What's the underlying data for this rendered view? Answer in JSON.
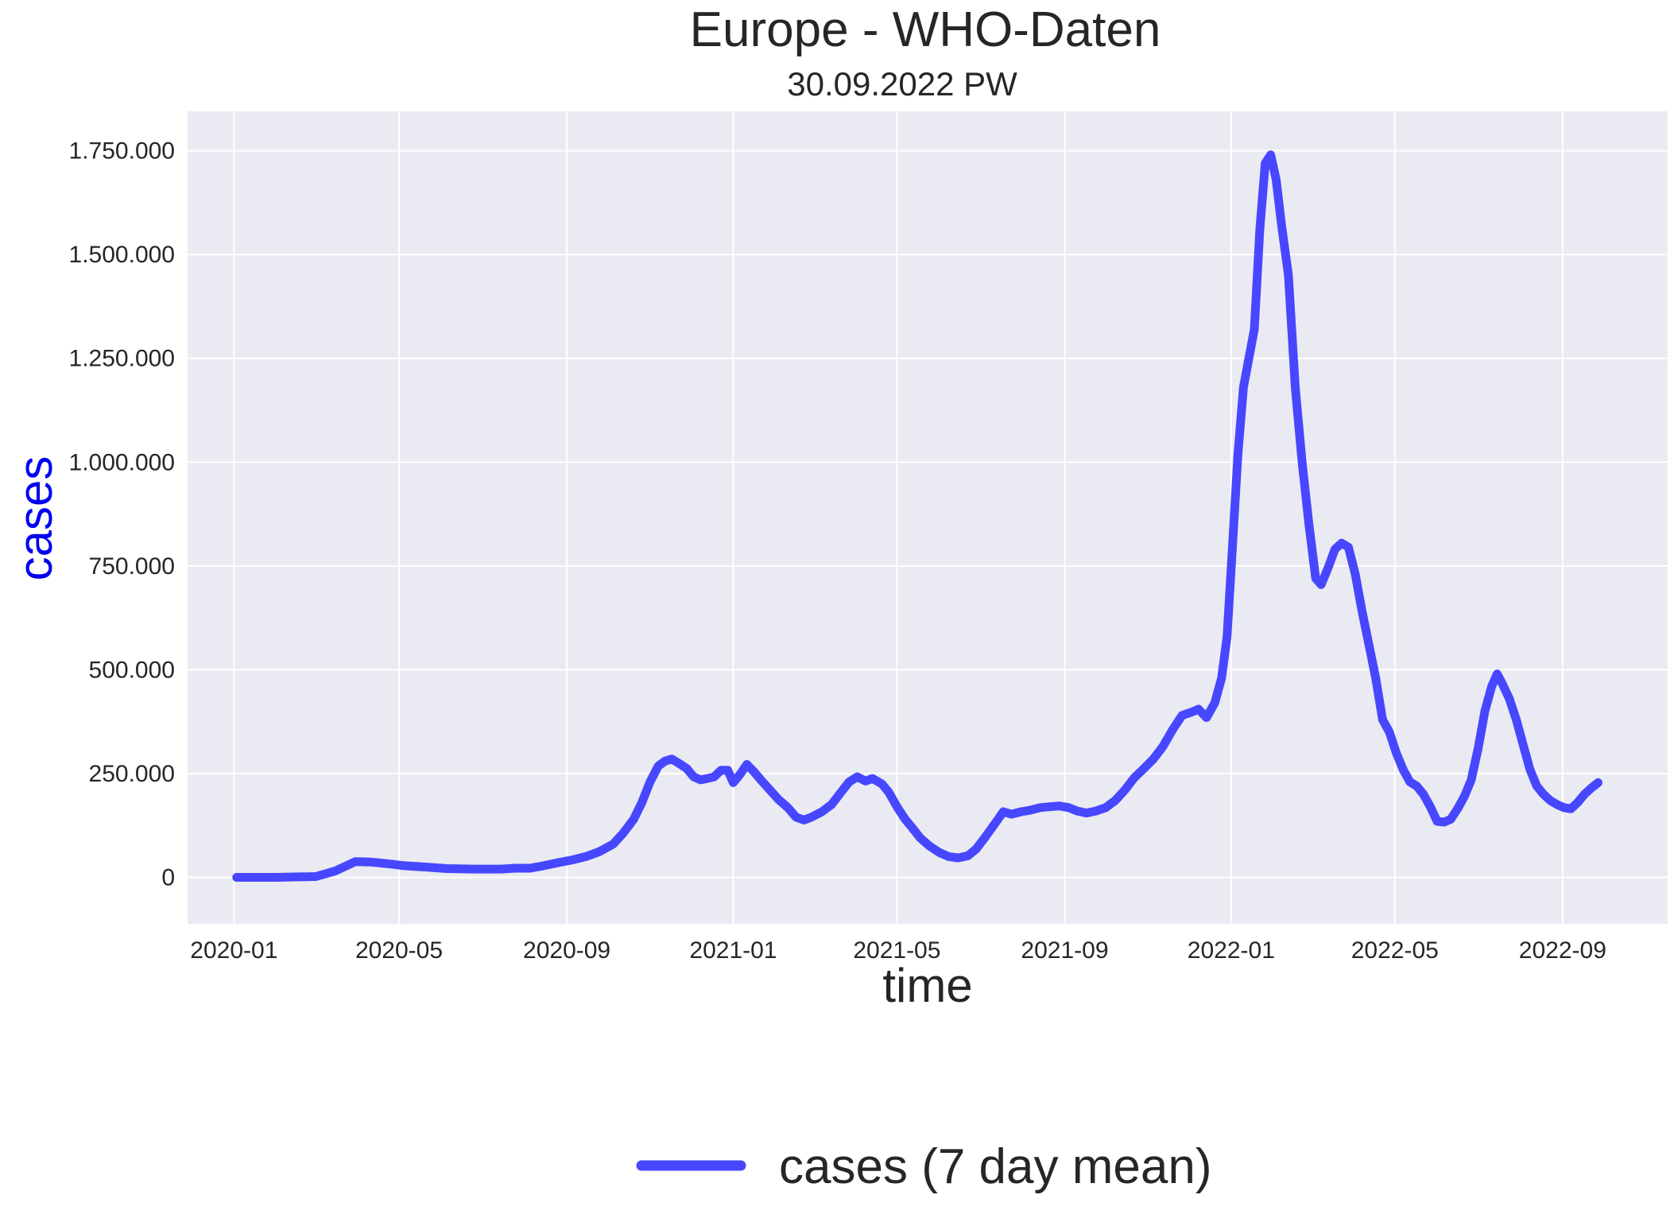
{
  "chart_data": {
    "type": "line",
    "title": "Europe - WHO-Daten",
    "subtitle": "30.09.2022 PW",
    "xlabel": "time",
    "ylabel": "cases",
    "ylim": [
      -112000,
      1845000
    ],
    "xlim": [
      "2019-11-28",
      "2022-11-17"
    ],
    "x_ticks": [
      {
        "date": "2020-01-01",
        "label": "2020-01"
      },
      {
        "date": "2020-05-01",
        "label": "2020-05"
      },
      {
        "date": "2020-09-01",
        "label": "2020-09"
      },
      {
        "date": "2021-01-01",
        "label": "2021-01"
      },
      {
        "date": "2021-05-01",
        "label": "2021-05"
      },
      {
        "date": "2021-09-01",
        "label": "2021-09"
      },
      {
        "date": "2022-01-01",
        "label": "2022-01"
      },
      {
        "date": "2022-05-01",
        "label": "2022-05"
      },
      {
        "date": "2022-09-01",
        "label": "2022-09"
      }
    ],
    "y_ticks": [
      {
        "value": 0,
        "label": "0"
      },
      {
        "value": 250000,
        "label": "250.000"
      },
      {
        "value": 500000,
        "label": "500.000"
      },
      {
        "value": 750000,
        "label": "750.000"
      },
      {
        "value": 1000000,
        "label": "1.000.000"
      },
      {
        "value": 1250000,
        "label": "1.250.000"
      },
      {
        "value": 1500000,
        "label": "1.500.000"
      },
      {
        "value": 1750000,
        "label": "1.750.000"
      }
    ],
    "grid": true,
    "legend_position": "bottom-center",
    "series": [
      {
        "name": "cases (7 day mean)",
        "color": "#4747ff",
        "points": [
          [
            "2020-01-03",
            0
          ],
          [
            "2020-02-01",
            0
          ],
          [
            "2020-03-01",
            2000
          ],
          [
            "2020-03-15",
            15000
          ],
          [
            "2020-03-30",
            38000
          ],
          [
            "2020-04-10",
            37000
          ],
          [
            "2020-04-25",
            32000
          ],
          [
            "2020-05-05",
            28000
          ],
          [
            "2020-05-20",
            25000
          ],
          [
            "2020-06-05",
            21000
          ],
          [
            "2020-06-25",
            20000
          ],
          [
            "2020-07-15",
            20000
          ],
          [
            "2020-07-25",
            22000
          ],
          [
            "2020-08-05",
            22000
          ],
          [
            "2020-08-15",
            28000
          ],
          [
            "2020-08-25",
            35000
          ],
          [
            "2020-09-05",
            42000
          ],
          [
            "2020-09-15",
            50000
          ],
          [
            "2020-09-25",
            62000
          ],
          [
            "2020-10-05",
            80000
          ],
          [
            "2020-10-12",
            105000
          ],
          [
            "2020-10-20",
            140000
          ],
          [
            "2020-10-26",
            180000
          ],
          [
            "2020-11-01",
            230000
          ],
          [
            "2020-11-07",
            268000
          ],
          [
            "2020-11-12",
            280000
          ],
          [
            "2020-11-17",
            285000
          ],
          [
            "2020-11-22",
            275000
          ],
          [
            "2020-11-28",
            262000
          ],
          [
            "2020-12-03",
            242000
          ],
          [
            "2020-12-08",
            235000
          ],
          [
            "2020-12-13",
            238000
          ],
          [
            "2020-12-18",
            242000
          ],
          [
            "2020-12-23",
            258000
          ],
          [
            "2020-12-28",
            258000
          ],
          [
            "2021-01-01",
            228000
          ],
          [
            "2021-01-06",
            248000
          ],
          [
            "2021-01-11",
            272000
          ],
          [
            "2021-01-16",
            255000
          ],
          [
            "2021-01-22",
            232000
          ],
          [
            "2021-01-28",
            210000
          ],
          [
            "2021-02-03",
            188000
          ],
          [
            "2021-02-10",
            168000
          ],
          [
            "2021-02-16",
            145000
          ],
          [
            "2021-02-22",
            138000
          ],
          [
            "2021-02-28",
            146000
          ],
          [
            "2021-03-07",
            158000
          ],
          [
            "2021-03-14",
            175000
          ],
          [
            "2021-03-21",
            205000
          ],
          [
            "2021-03-27",
            230000
          ],
          [
            "2021-04-02",
            242000
          ],
          [
            "2021-04-08",
            232000
          ],
          [
            "2021-04-13",
            238000
          ],
          [
            "2021-04-20",
            225000
          ],
          [
            "2021-04-25",
            205000
          ],
          [
            "2021-05-01",
            170000
          ],
          [
            "2021-05-07",
            140000
          ],
          [
            "2021-05-12",
            120000
          ],
          [
            "2021-05-18",
            95000
          ],
          [
            "2021-05-25",
            75000
          ],
          [
            "2021-06-01",
            60000
          ],
          [
            "2021-06-08",
            50000
          ],
          [
            "2021-06-15",
            47000
          ],
          [
            "2021-06-22",
            52000
          ],
          [
            "2021-06-28",
            68000
          ],
          [
            "2021-07-05",
            98000
          ],
          [
            "2021-07-12",
            130000
          ],
          [
            "2021-07-18",
            158000
          ],
          [
            "2021-07-24",
            152000
          ],
          [
            "2021-07-31",
            158000
          ],
          [
            "2021-08-07",
            162000
          ],
          [
            "2021-08-14",
            168000
          ],
          [
            "2021-08-21",
            170000
          ],
          [
            "2021-08-28",
            172000
          ],
          [
            "2021-09-04",
            168000
          ],
          [
            "2021-09-10",
            160000
          ],
          [
            "2021-09-17",
            155000
          ],
          [
            "2021-09-24",
            160000
          ],
          [
            "2021-10-01",
            168000
          ],
          [
            "2021-10-08",
            185000
          ],
          [
            "2021-10-15",
            210000
          ],
          [
            "2021-10-22",
            240000
          ],
          [
            "2021-10-29",
            262000
          ],
          [
            "2021-11-05",
            285000
          ],
          [
            "2021-11-12",
            315000
          ],
          [
            "2021-11-19",
            355000
          ],
          [
            "2021-11-26",
            390000
          ],
          [
            "2021-12-03",
            398000
          ],
          [
            "2021-12-08",
            405000
          ],
          [
            "2021-12-14",
            385000
          ],
          [
            "2021-12-20",
            420000
          ],
          [
            "2021-12-25",
            480000
          ],
          [
            "2021-12-29",
            580000
          ],
          [
            "2022-01-02",
            800000
          ],
          [
            "2022-01-06",
            1020000
          ],
          [
            "2022-01-10",
            1180000
          ],
          [
            "2022-01-14",
            1250000
          ],
          [
            "2022-01-18",
            1320000
          ],
          [
            "2022-01-22",
            1560000
          ],
          [
            "2022-01-26",
            1720000
          ],
          [
            "2022-01-30",
            1740000
          ],
          [
            "2022-02-03",
            1680000
          ],
          [
            "2022-02-07",
            1570000
          ],
          [
            "2022-02-12",
            1450000
          ],
          [
            "2022-02-17",
            1180000
          ],
          [
            "2022-02-22",
            1000000
          ],
          [
            "2022-02-27",
            850000
          ],
          [
            "2022-03-04",
            720000
          ],
          [
            "2022-03-08",
            705000
          ],
          [
            "2022-03-13",
            745000
          ],
          [
            "2022-03-18",
            790000
          ],
          [
            "2022-03-23",
            805000
          ],
          [
            "2022-03-28",
            795000
          ],
          [
            "2022-04-02",
            730000
          ],
          [
            "2022-04-07",
            640000
          ],
          [
            "2022-04-12",
            560000
          ],
          [
            "2022-04-17",
            480000
          ],
          [
            "2022-04-22",
            380000
          ],
          [
            "2022-04-27",
            350000
          ],
          [
            "2022-05-02",
            300000
          ],
          [
            "2022-05-07",
            260000
          ],
          [
            "2022-05-12",
            230000
          ],
          [
            "2022-05-17",
            220000
          ],
          [
            "2022-05-22",
            200000
          ],
          [
            "2022-05-27",
            170000
          ],
          [
            "2022-06-01",
            135000
          ],
          [
            "2022-06-06",
            133000
          ],
          [
            "2022-06-11",
            140000
          ],
          [
            "2022-06-16",
            165000
          ],
          [
            "2022-06-21",
            195000
          ],
          [
            "2022-06-26",
            235000
          ],
          [
            "2022-07-01",
            310000
          ],
          [
            "2022-07-06",
            400000
          ],
          [
            "2022-07-11",
            460000
          ],
          [
            "2022-07-15",
            490000
          ],
          [
            "2022-07-19",
            465000
          ],
          [
            "2022-07-24",
            430000
          ],
          [
            "2022-07-29",
            380000
          ],
          [
            "2022-08-03",
            320000
          ],
          [
            "2022-08-08",
            260000
          ],
          [
            "2022-08-13",
            220000
          ],
          [
            "2022-08-18",
            200000
          ],
          [
            "2022-08-23",
            185000
          ],
          [
            "2022-08-28",
            175000
          ],
          [
            "2022-09-02",
            168000
          ],
          [
            "2022-09-07",
            165000
          ],
          [
            "2022-09-12",
            180000
          ],
          [
            "2022-09-17",
            200000
          ],
          [
            "2022-09-22",
            215000
          ],
          [
            "2022-09-27",
            228000
          ]
        ]
      }
    ]
  }
}
